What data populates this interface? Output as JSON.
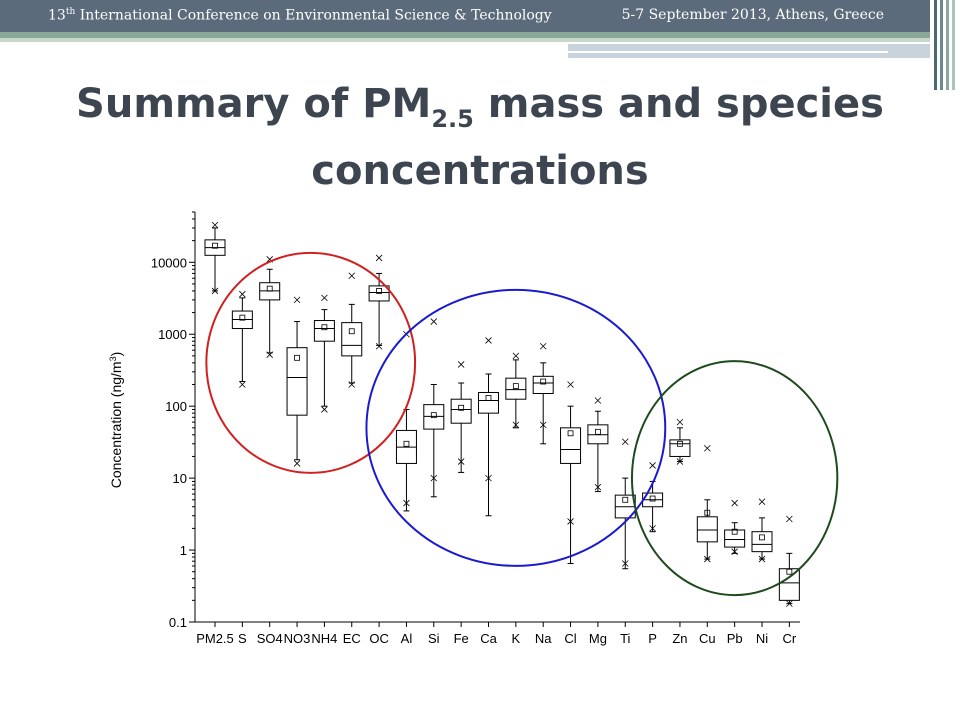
{
  "header": {
    "conf_prefix": "13",
    "conf_suffix": "th",
    "conf_rest": " International Conference on Environmental Science & Technology",
    "date_place": "5-7 September 2013, Athens, Greece"
  },
  "slide_title": {
    "line1_prefix": "Summary of PM",
    "line1_sub": "2.5",
    "line1_suffix": " mass and species",
    "line2": "concentrations"
  },
  "colors": {
    "header_bg": "#5b6b7b",
    "circle_red": "#d02020",
    "circle_blue": "#1a1ad0",
    "circle_green": "#1e4a1e"
  },
  "chart_data": {
    "type": "box",
    "yscale": "log",
    "ylim": [
      0.1,
      50000
    ],
    "ylabel": "Concentration (ng/m",
    "ylabel_sup": "3",
    "ylabel_end": ")",
    "yticks": [
      {
        "value": 0.1,
        "label": "0.1"
      },
      {
        "value": 1,
        "label": "1"
      },
      {
        "value": 10,
        "label": "10"
      },
      {
        "value": 100,
        "label": "100"
      },
      {
        "value": 1000,
        "label": "1000"
      },
      {
        "value": 10000,
        "label": "10000"
      }
    ],
    "categories": [
      "PM2.5",
      "S",
      "SO4",
      "NO3",
      "NH4",
      "EC",
      "OC",
      "Al",
      "Si",
      "Fe",
      "Ca",
      "K",
      "Na",
      "Cl",
      "Mg",
      "Ti",
      "P",
      "Zn",
      "Cu",
      "Pb",
      "Ni",
      "Cr"
    ],
    "boxes": [
      {
        "q1": 12500,
        "med": 16000,
        "q3": 20500,
        "wlo": 4000,
        "whi": 30000,
        "mean": 17000,
        "xlo": 4000,
        "xhi": 33000
      },
      {
        "q1": 1200,
        "med": 1600,
        "q3": 2100,
        "wlo": 220,
        "whi": 3200,
        "mean": 1700,
        "xlo": 200,
        "xhi": 3600
      },
      {
        "q1": 3000,
        "med": 4000,
        "q3": 5200,
        "wlo": 550,
        "whi": 8000,
        "mean": 4300,
        "xlo": 520,
        "xhi": 11000
      },
      {
        "q1": 75,
        "med": 250,
        "q3": 650,
        "wlo": 18,
        "whi": 1500,
        "mean": 470,
        "xlo": 16,
        "xhi": 3000
      },
      {
        "q1": 800,
        "med": 1200,
        "q3": 1550,
        "wlo": 100,
        "whi": 2200,
        "mean": 1250,
        "xlo": 90,
        "xhi": 3200
      },
      {
        "q1": 500,
        "med": 700,
        "q3": 1450,
        "wlo": 210,
        "whi": 2600,
        "mean": 1100,
        "xlo": 200,
        "xhi": 6500
      },
      {
        "q1": 2900,
        "med": 3800,
        "q3": 4700,
        "wlo": 700,
        "whi": 7000,
        "mean": 4000,
        "xlo": 680,
        "xhi": 11500
      },
      {
        "q1": 16,
        "med": 27,
        "q3": 46,
        "wlo": 3.5,
        "whi": 90,
        "mean": 30,
        "xlo": 4.5,
        "xhi": 1000
      },
      {
        "q1": 48,
        "med": 72,
        "q3": 105,
        "wlo": 5.5,
        "whi": 200,
        "mean": 75,
        "xlo": 10,
        "xhi": 1500
      },
      {
        "q1": 58,
        "med": 90,
        "q3": 125,
        "wlo": 12,
        "whi": 210,
        "mean": 95,
        "xlo": 17,
        "xhi": 380
      },
      {
        "q1": 80,
        "med": 120,
        "q3": 155,
        "wlo": 3,
        "whi": 280,
        "mean": 130,
        "xlo": 10,
        "xhi": 820
      },
      {
        "q1": 125,
        "med": 170,
        "q3": 245,
        "wlo": 50,
        "whi": 440,
        "mean": 190,
        "xlo": 55,
        "xhi": 500
      },
      {
        "q1": 150,
        "med": 210,
        "q3": 260,
        "wlo": 30,
        "whi": 400,
        "mean": 220,
        "xlo": 55,
        "xhi": 680
      },
      {
        "q1": 16,
        "med": 25,
        "q3": 50,
        "wlo": 0.65,
        "whi": 100,
        "mean": 42,
        "xlo": 2.5,
        "xhi": 200
      },
      {
        "q1": 30,
        "med": 40,
        "q3": 55,
        "wlo": 6.5,
        "whi": 85,
        "mean": 44,
        "xlo": 7.5,
        "xhi": 120
      },
      {
        "q1": 2.8,
        "med": 4,
        "q3": 5.8,
        "wlo": 0.55,
        "whi": 10,
        "mean": 5,
        "xlo": 0.65,
        "xhi": 32
      },
      {
        "q1": 4,
        "med": 5,
        "q3": 6.2,
        "wlo": 1.8,
        "whi": 9,
        "mean": 5.2,
        "xlo": 2,
        "xhi": 15
      },
      {
        "q1": 20,
        "med": 30,
        "q3": 34,
        "wlo": 17,
        "whi": 50,
        "mean": 30,
        "xlo": 17,
        "xhi": 60
      },
      {
        "q1": 1.3,
        "med": 1.9,
        "q3": 2.9,
        "wlo": 0.75,
        "whi": 5,
        "mean": 3.3,
        "xlo": 0.75,
        "xhi": 26
      },
      {
        "q1": 1.1,
        "med": 1.4,
        "q3": 1.9,
        "wlo": 0.9,
        "whi": 2.4,
        "mean": 1.8,
        "xlo": 0.95,
        "xhi": 4.5
      },
      {
        "q1": 0.95,
        "med": 1.2,
        "q3": 1.8,
        "wlo": 0.75,
        "whi": 2.8,
        "mean": 1.5,
        "xlo": 0.75,
        "xhi": 4.7
      },
      {
        "q1": 0.2,
        "med": 0.35,
        "q3": 0.55,
        "wlo": 0.18,
        "whi": 0.9,
        "mean": 0.5,
        "xlo": 0.18,
        "xhi": 2.7
      }
    ],
    "groupings": [
      {
        "name": "red",
        "from": "S",
        "to": "OC"
      },
      {
        "name": "blue",
        "from": "Al",
        "to": "Ti"
      },
      {
        "name": "green",
        "from": "Zn",
        "to": "Cr"
      }
    ]
  }
}
